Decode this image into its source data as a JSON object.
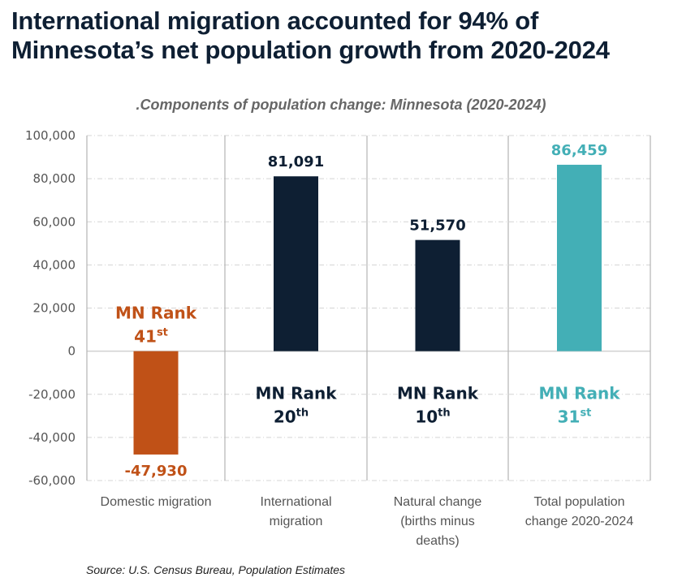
{
  "title": "International migration accounted for 94% of Minnesota’s net population growth from 2020-2024",
  "source": "Source: U.S. Census Bureau, Population Estimates",
  "chart_data": {
    "type": "bar",
    "title": ".Components of population change: Minnesota (2020-2024)",
    "xlabel": "",
    "ylabel": "",
    "ylim": [
      -60000,
      100000
    ],
    "yticks": [
      100000,
      80000,
      60000,
      40000,
      20000,
      0,
      -20000,
      -40000,
      -60000
    ],
    "ytick_labels": [
      "100,000",
      "80,000",
      "60,000",
      "40,000",
      "20,000",
      "0",
      "-20,000",
      "-40,000",
      "-60,000"
    ],
    "grid": true,
    "legend": "none",
    "categories": [
      [
        "Domestic migration"
      ],
      [
        "International",
        "migration"
      ],
      [
        "Natural change",
        "(births minus",
        "deaths)"
      ],
      [
        "Total population",
        "change 2020-2024"
      ]
    ],
    "values": [
      -47930,
      81091,
      51570,
      86459
    ],
    "value_labels": [
      "-47,930",
      "81,091",
      "51,570",
      "86,459"
    ],
    "colors": [
      "#c05117",
      "#0e1f33",
      "#0e1f33",
      "#43afb6"
    ],
    "annotations": [
      {
        "label": "MN Rank",
        "rank": "41",
        "suffix": "st",
        "placement": "above-zero"
      },
      {
        "label": "MN Rank",
        "rank": "20",
        "suffix": "th",
        "placement": "below-zero"
      },
      {
        "label": "MN Rank",
        "rank": "10",
        "suffix": "th",
        "placement": "below-zero"
      },
      {
        "label": "MN Rank",
        "rank": "31",
        "suffix": "st",
        "placement": "below-zero"
      }
    ]
  }
}
